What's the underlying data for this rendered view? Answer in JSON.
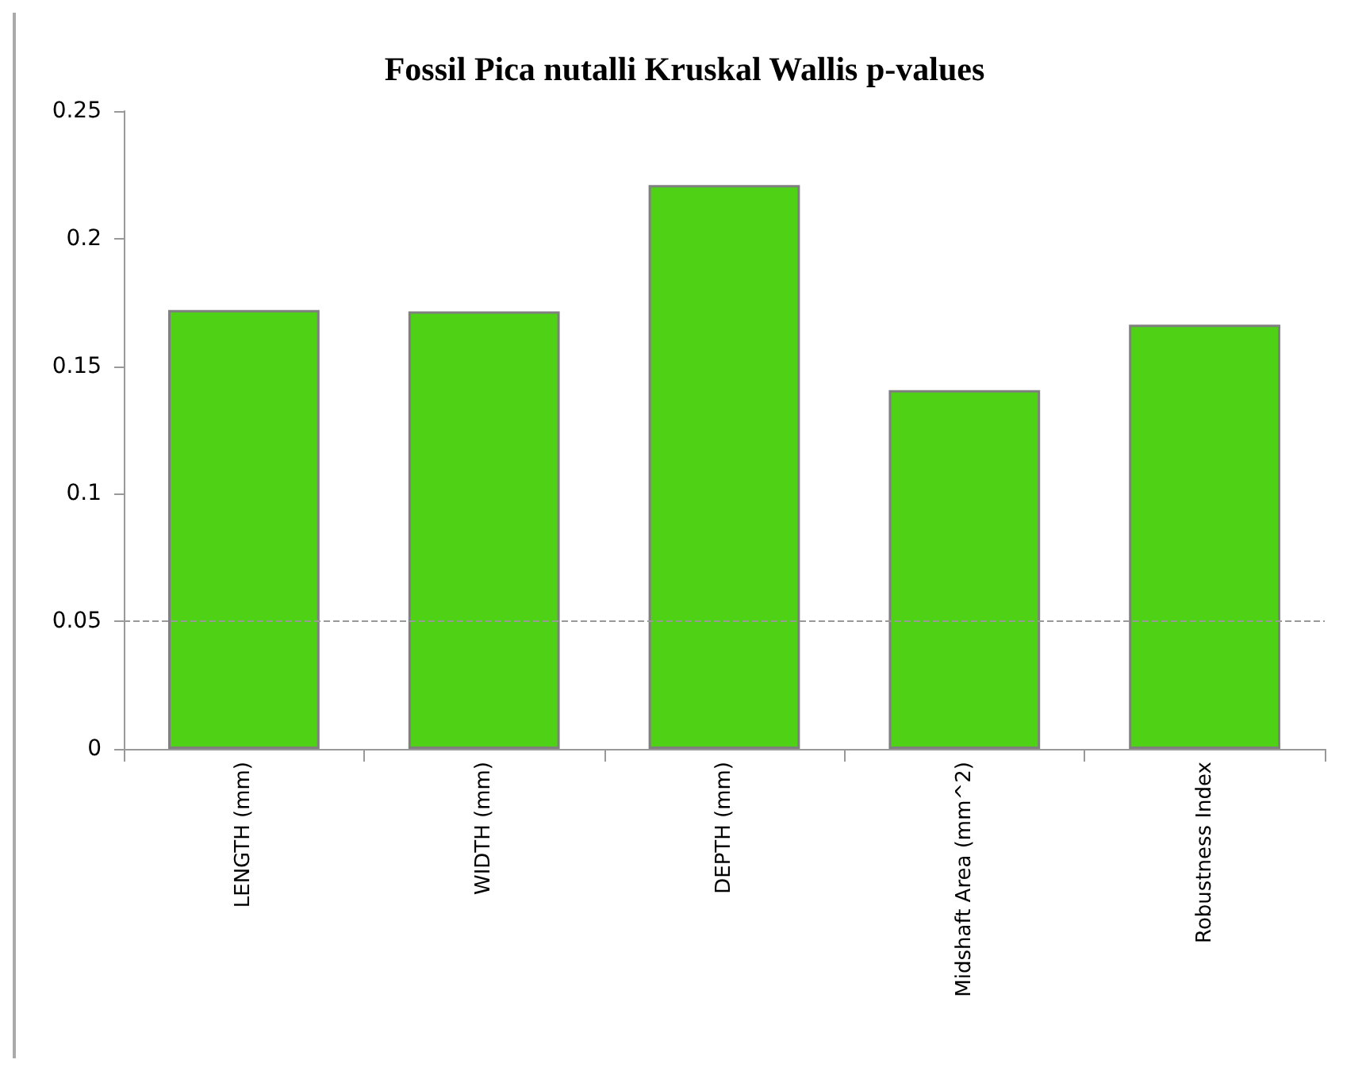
{
  "chart_data": {
    "type": "bar",
    "title": "Fossil Pica nutalli Kruskal Wallis p-values",
    "categories": [
      "LENGTH (mm)",
      "WIDTH (mm)",
      "DEPTH (mm)",
      "Midshaft Area (mm^2)",
      "Robustness Index"
    ],
    "values": [
      0.172,
      0.1715,
      0.221,
      0.1406,
      0.1663
    ],
    "color": "#4fd216",
    "ylim": [
      0,
      0.25
    ],
    "yticks": [
      0,
      0.05,
      0.1,
      0.15,
      0.2,
      0.25
    ],
    "grid": false,
    "ref_lines": [
      {
        "axis": "y",
        "value": 0.05,
        "color": "#999999",
        "line_style": "dashed"
      }
    ]
  }
}
